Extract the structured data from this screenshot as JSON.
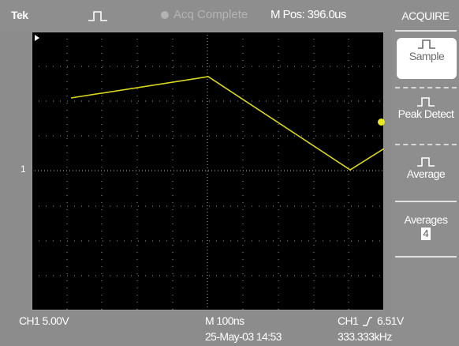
{
  "header": {
    "brand": "Tek",
    "acquisition_status": "Acq Complete",
    "m_pos": "M Pos: 396.0us"
  },
  "graticule": {
    "channel_marker": "1",
    "trace_color": "#d8d820",
    "trigger_marker_color": "#e8e820"
  },
  "menu": {
    "title": "ACQUIRE",
    "items": [
      {
        "label": "Sample",
        "selected": true
      },
      {
        "label": "Peak Detect",
        "selected": false
      },
      {
        "label": "Average",
        "selected": false
      }
    ],
    "averages_label": "Averages",
    "averages_value": "4"
  },
  "readouts": {
    "ch1_scale": "CH1  5.00V",
    "timebase": "M 100ns",
    "trigger": "CH1",
    "trigger_level": "6.51V",
    "date_time": "25-May-03 14:53",
    "frequency": "333.333kHz"
  },
  "icons": {
    "trigger_state": "rising-pulse-icon",
    "acq_dot": "status-dot-icon",
    "menu_pulse": "pulse-icon",
    "trigger_slope": "rising-edge-icon"
  }
}
